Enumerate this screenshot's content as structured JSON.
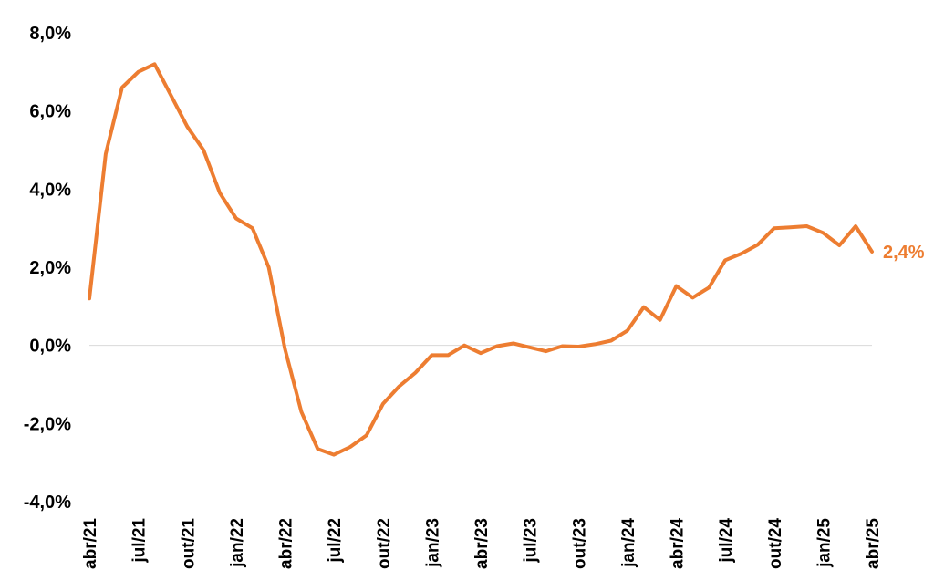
{
  "chart_data": {
    "type": "line",
    "title": "",
    "xlabel": "",
    "ylabel": "",
    "ylim": [
      -4.0,
      8.0
    ],
    "yticks": [
      "8,0%",
      "6,0%",
      "4,0%",
      "2,0%",
      "0,0%",
      "-2,0%",
      "-4,0%"
    ],
    "ytick_values": [
      8,
      6,
      4,
      2,
      0,
      -2,
      -4
    ],
    "xtick_labels": [
      "abr/21",
      "jul/21",
      "out/21",
      "jan/22",
      "abr/22",
      "jul/22",
      "out/22",
      "jan/23",
      "abr/23",
      "jul/23",
      "out/23",
      "jan/24",
      "abr/24",
      "jul/24",
      "out/24",
      "jan/25",
      "abr/25"
    ],
    "x": [
      "abr/21",
      "mai/21",
      "jun/21",
      "jul/21",
      "ago/21",
      "set/21",
      "out/21",
      "nov/21",
      "dez/21",
      "jan/22",
      "fev/22",
      "mar/22",
      "abr/22",
      "mai/22",
      "jun/22",
      "jul/22",
      "ago/22",
      "set/22",
      "out/22",
      "nov/22",
      "dez/22",
      "jan/23",
      "fev/23",
      "mar/23",
      "abr/23",
      "mai/23",
      "jun/23",
      "jul/23",
      "ago/23",
      "set/23",
      "out/23",
      "nov/23",
      "dez/23",
      "jan/24",
      "fev/24",
      "mar/24",
      "abr/24",
      "mai/24",
      "jun/24",
      "jul/24",
      "ago/24",
      "set/24",
      "out/24",
      "nov/24",
      "dez/24",
      "jan/25",
      "fev/25",
      "mar/25",
      "abr/25"
    ],
    "series": [
      {
        "color": "#ED7D31",
        "values": [
          1.2,
          4.9,
          6.6,
          7.0,
          7.2,
          6.4,
          5.6,
          5.0,
          3.9,
          3.25,
          3.0,
          2.0,
          -0.1,
          -1.7,
          -2.65,
          -2.8,
          -2.6,
          -2.3,
          -1.5,
          -1.05,
          -0.7,
          -0.25,
          -0.25,
          0.0,
          -0.2,
          -0.02,
          0.05,
          -0.05,
          -0.15,
          -0.02,
          -0.03,
          0.03,
          0.12,
          0.38,
          0.98,
          0.65,
          1.52,
          1.22,
          1.48,
          2.18,
          2.35,
          2.58,
          3.0,
          3.02,
          3.05,
          2.88,
          2.56,
          3.05,
          2.4
        ]
      }
    ],
    "end_label": "2,4%",
    "zero_line": true,
    "grid": false,
    "legend": "none"
  }
}
